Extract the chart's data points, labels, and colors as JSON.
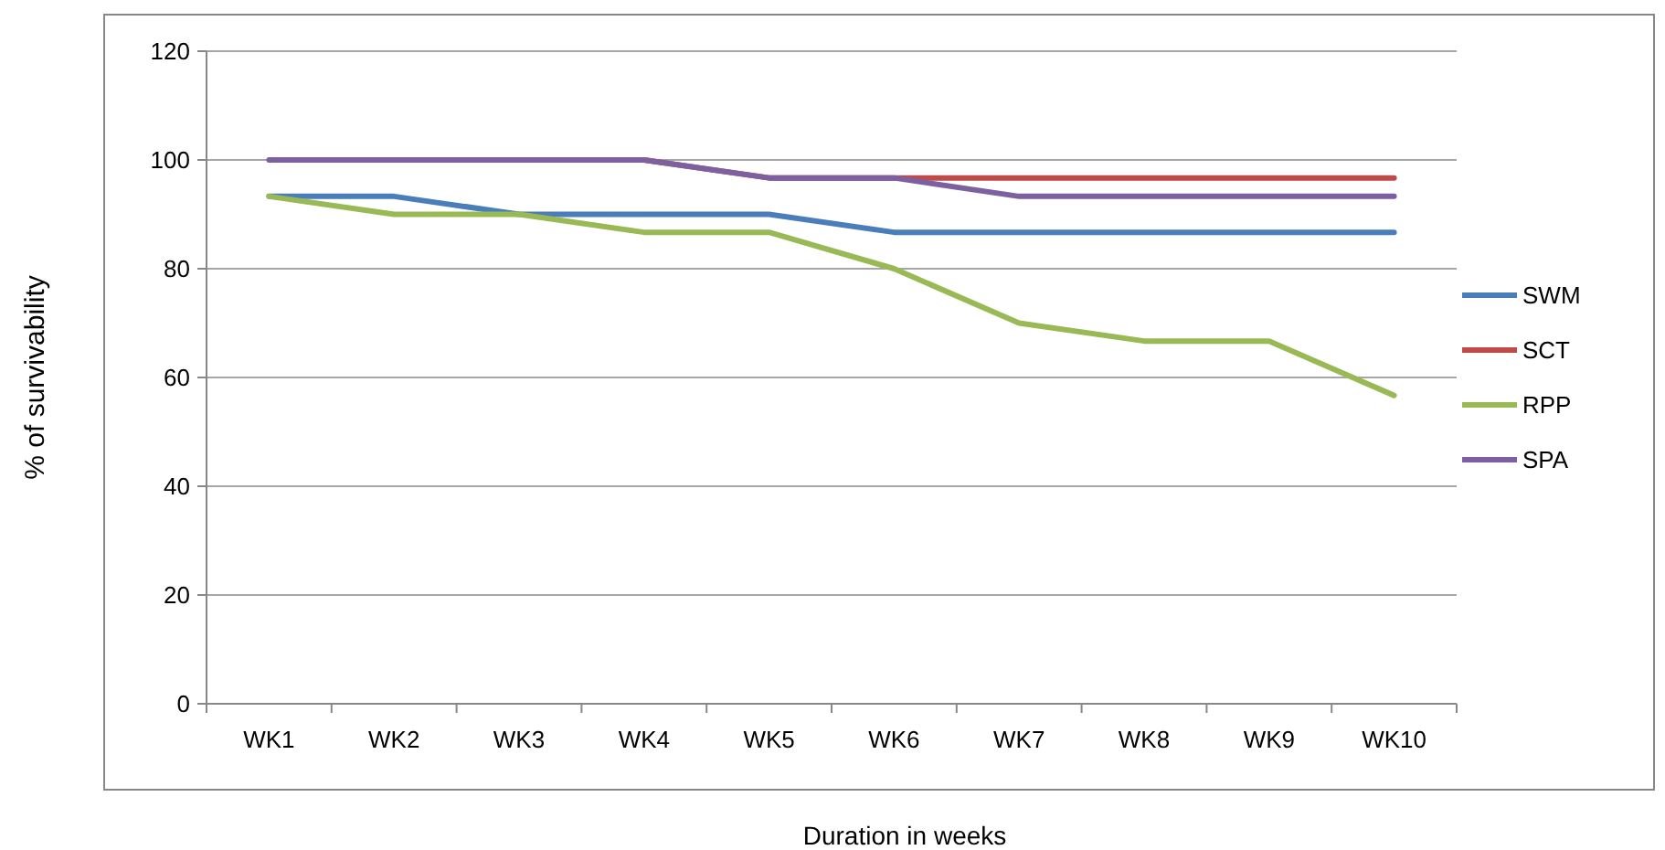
{
  "chart_data": {
    "type": "line",
    "xlabel": "Duration in weeks",
    "ylabel": "% of survivability",
    "categories": [
      "WK1",
      "WK2",
      "WK3",
      "WK4",
      "WK5",
      "WK6",
      "WK7",
      "WK8",
      "WK9",
      "WK10"
    ],
    "series": [
      {
        "name": "SWM",
        "color": "#4a7ebb",
        "values": [
          93.3,
          93.3,
          90,
          90,
          90,
          86.7,
          86.7,
          86.7,
          86.7,
          86.7
        ]
      },
      {
        "name": "SCT",
        "color": "#be4b48",
        "values": [
          null,
          null,
          100,
          100,
          96.7,
          96.7,
          96.7,
          96.7,
          96.7,
          96.7
        ]
      },
      {
        "name": "RPP",
        "color": "#98b954",
        "values": [
          93.3,
          90,
          90,
          86.7,
          86.7,
          80,
          70,
          66.7,
          66.7,
          56.7
        ]
      },
      {
        "name": "SPA",
        "color": "#7d60a0",
        "values": [
          100,
          100,
          100,
          100,
          96.7,
          96.7,
          93.3,
          93.3,
          93.3,
          93.3
        ]
      }
    ],
    "ylim": [
      0,
      120
    ],
    "yticks": [
      0,
      20,
      40,
      60,
      80,
      100,
      120
    ],
    "grid": "y",
    "legend": "right",
    "marker": "none",
    "line_style": "solid"
  }
}
